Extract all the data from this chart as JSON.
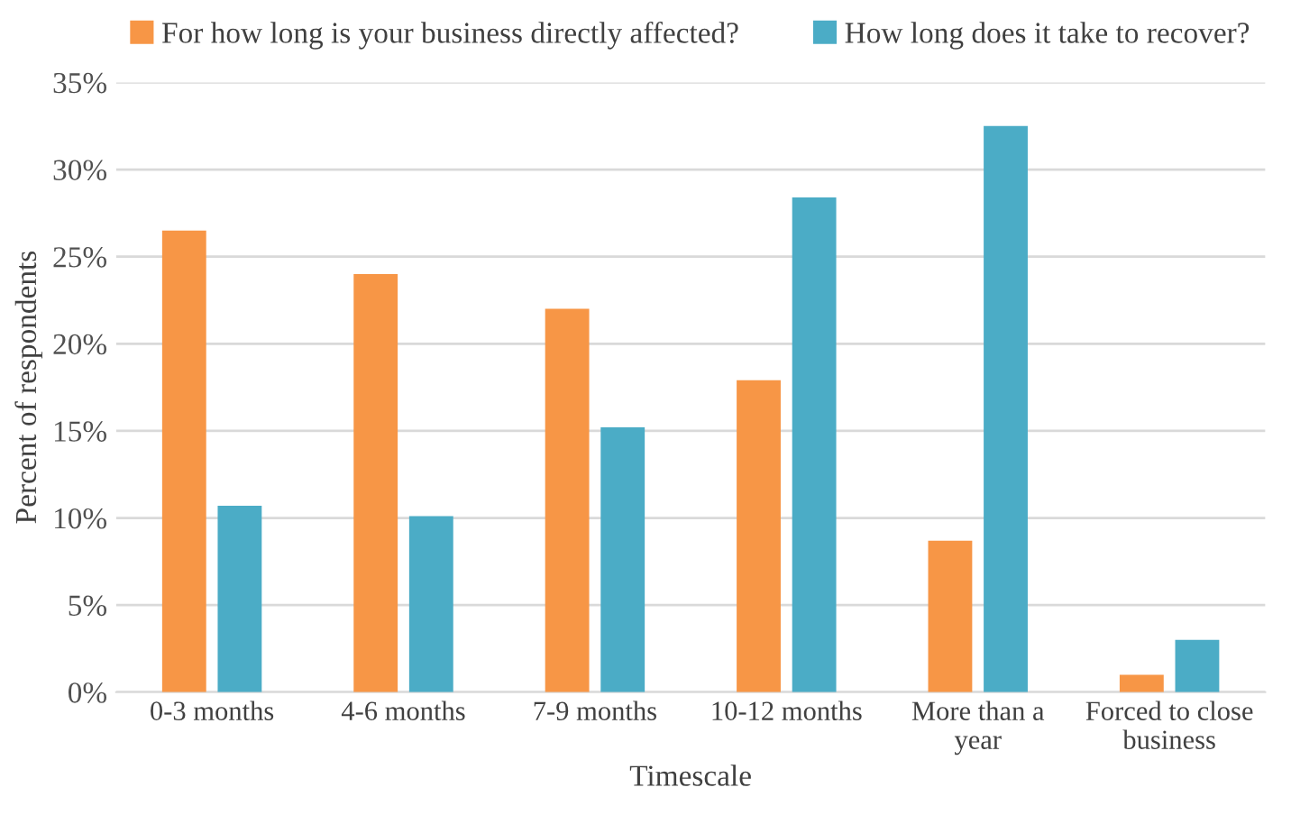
{
  "chart_data": {
    "type": "bar",
    "xlabel": "Timescale",
    "ylabel": "Percent of respondents",
    "categories": [
      "0-3 months",
      "4-6 months",
      "7-9 months",
      "10-12 months",
      "More than a\nyear",
      "Forced to close\nbusiness"
    ],
    "series": [
      {
        "name": "For how long is your business directly affected?",
        "color": "#f79646",
        "values": [
          26.5,
          24.0,
          22.0,
          17.9,
          8.7,
          1.0
        ]
      },
      {
        "name": "How long does it take to recover?",
        "color": "#4bacc6",
        "values": [
          10.7,
          10.1,
          15.2,
          28.4,
          32.5,
          3.0
        ]
      }
    ],
    "ylim": [
      0,
      35
    ],
    "yticks": [
      {
        "value": 0,
        "label": "0%"
      },
      {
        "value": 5,
        "label": "5%"
      },
      {
        "value": 10,
        "label": "10%"
      },
      {
        "value": 15,
        "label": "15%"
      },
      {
        "value": 20,
        "label": "20%"
      },
      {
        "value": 25,
        "label": "25%"
      },
      {
        "value": 30,
        "label": "30%"
      },
      {
        "value": 35,
        "label": "35%"
      }
    ],
    "grid": "y",
    "legend": "top"
  }
}
